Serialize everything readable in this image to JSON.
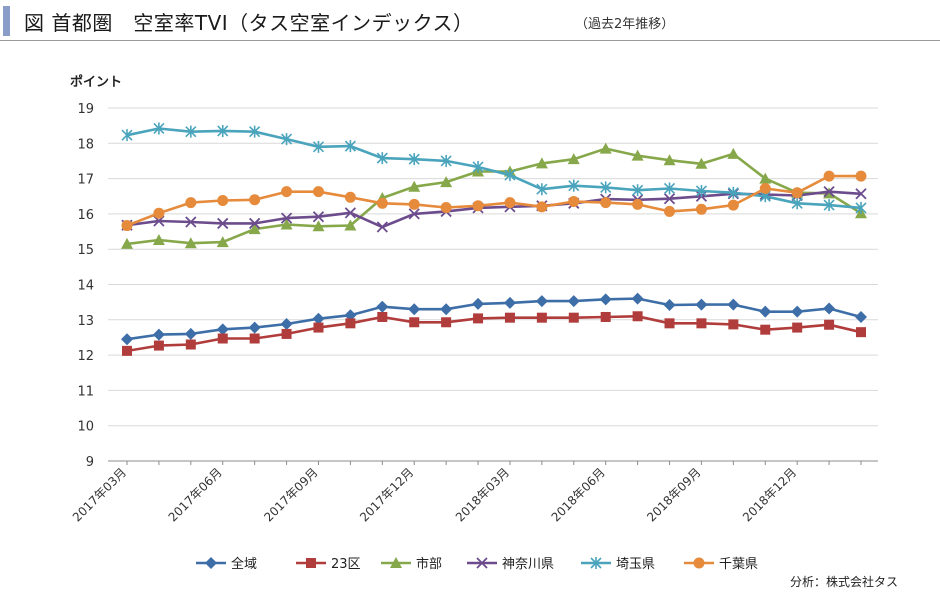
{
  "header": {
    "title": "図 首都圏　空室率TVI（タス空室インデックス）",
    "subtitle": "（過去2年推移）"
  },
  "source": "分析：株式会社タス",
  "chart_data": {
    "type": "line",
    "ylabel": "ポイント",
    "ylim": [
      9,
      19
    ],
    "yticks": [
      9,
      10,
      11,
      12,
      13,
      14,
      15,
      16,
      17,
      18,
      19
    ],
    "grid": true,
    "legend_position": "bottom",
    "x": [
      "2017年03月",
      "2017年04月",
      "2017年05月",
      "2017年06月",
      "2017年07月",
      "2017年08月",
      "2017年09月",
      "2017年10月",
      "2017年11月",
      "2017年12月",
      "2018年01月",
      "2018年02月",
      "2018年03月",
      "2018年04月",
      "2018年05月",
      "2018年06月",
      "2018年07月",
      "2018年08月",
      "2018年09月",
      "2018年10月",
      "2018年11月",
      "2018年12月",
      "2019年01月",
      "2019年02月"
    ],
    "x_tick_labels": [
      "2017年03月",
      "2017年06月",
      "2017年09月",
      "2017年12月",
      "2018年03月",
      "2018年06月",
      "2018年09月",
      "2018年12月"
    ],
    "series": [
      {
        "name": "全域",
        "color": "#3e6ea8",
        "marker": "diamond",
        "values": [
          12.45,
          12.58,
          12.6,
          12.73,
          12.78,
          12.88,
          13.03,
          13.13,
          13.37,
          13.3,
          13.3,
          13.45,
          13.48,
          13.53,
          13.53,
          13.58,
          13.6,
          13.42,
          13.43,
          13.43,
          13.23,
          13.23,
          13.32,
          13.08
        ]
      },
      {
        "name": "23区",
        "color": "#b13c3c",
        "marker": "square",
        "values": [
          12.12,
          12.27,
          12.3,
          12.47,
          12.47,
          12.6,
          12.78,
          12.9,
          13.08,
          12.93,
          12.93,
          13.04,
          13.06,
          13.06,
          13.06,
          13.08,
          13.1,
          12.9,
          12.9,
          12.87,
          12.72,
          12.78,
          12.86,
          12.65
        ]
      },
      {
        "name": "市部",
        "color": "#86a84a",
        "marker": "triangle",
        "values": [
          15.15,
          15.26,
          15.17,
          15.2,
          15.57,
          15.7,
          15.65,
          15.67,
          16.45,
          16.77,
          16.9,
          17.2,
          17.2,
          17.43,
          17.55,
          17.85,
          17.65,
          17.52,
          17.42,
          17.7,
          17.0,
          16.6,
          16.58,
          16.02
        ]
      },
      {
        "name": "神奈川県",
        "color": "#6c4c8c",
        "marker": "x",
        "values": [
          15.68,
          15.8,
          15.77,
          15.73,
          15.73,
          15.88,
          15.92,
          16.03,
          15.63,
          16.0,
          16.07,
          16.17,
          16.2,
          16.23,
          16.3,
          16.42,
          16.4,
          16.43,
          16.5,
          16.57,
          16.55,
          16.52,
          16.63,
          16.57
        ]
      },
      {
        "name": "埼玉県",
        "color": "#4aa4bc",
        "marker": "star",
        "values": [
          18.23,
          18.42,
          18.33,
          18.35,
          18.33,
          18.12,
          17.9,
          17.92,
          17.58,
          17.55,
          17.5,
          17.33,
          17.1,
          16.7,
          16.8,
          16.75,
          16.67,
          16.72,
          16.65,
          16.6,
          16.5,
          16.3,
          16.25,
          16.17
        ]
      },
      {
        "name": "千葉県",
        "color": "#e68a3c",
        "marker": "circle",
        "values": [
          15.67,
          16.02,
          16.32,
          16.38,
          16.4,
          16.63,
          16.63,
          16.47,
          16.3,
          16.27,
          16.18,
          16.23,
          16.32,
          16.2,
          16.35,
          16.32,
          16.27,
          16.07,
          16.13,
          16.25,
          16.72,
          16.6,
          17.07,
          17.07
        ]
      }
    ]
  }
}
